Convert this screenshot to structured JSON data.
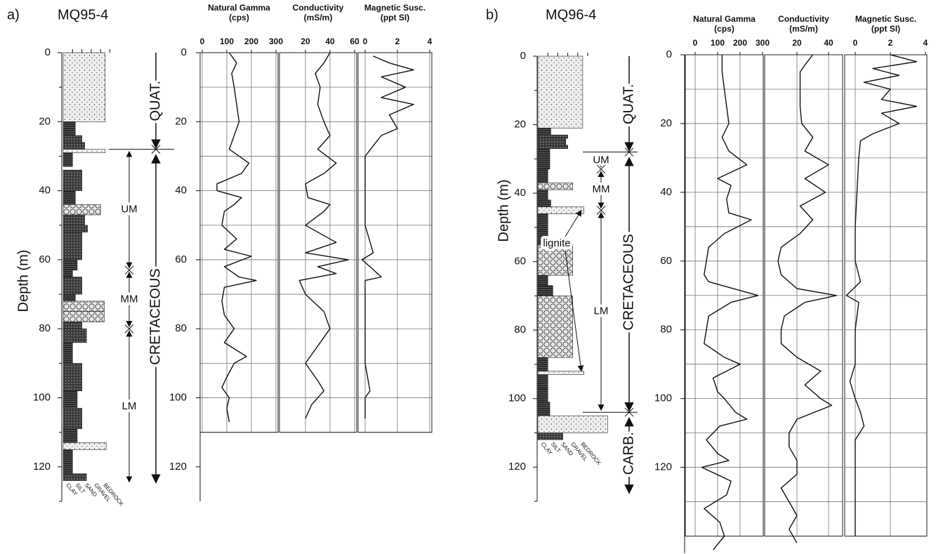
{
  "chart_data": [
    {
      "type": "well-log",
      "title": "a)",
      "subtitle": "MQ95-4",
      "ylabel": "Depth (m)",
      "lithology": {
        "ylim": [
          0,
          130
        ],
        "yticks": [
          0,
          20,
          40,
          60,
          80,
          100,
          120
        ],
        "yminor": [
          10,
          30,
          50,
          70,
          90,
          110,
          130
        ],
        "grain": [
          "CLAY",
          "SILT",
          "SAND",
          "GRAVEL",
          "BEDROCK"
        ],
        "units": [
          {
            "top": 0,
            "bottom": 20,
            "size": 4.5
          },
          {
            "top": 20,
            "bottom": 24,
            "size": 1.3
          },
          {
            "top": 24,
            "bottom": 26,
            "size": 2
          },
          {
            "top": 26,
            "bottom": 28,
            "size": 2.3
          },
          {
            "top": 28,
            "bottom": 29,
            "size": 4.5
          },
          {
            "top": 29,
            "bottom": 33,
            "size": 1
          },
          {
            "top": 34,
            "bottom": 40,
            "size": 2
          },
          {
            "top": 40,
            "bottom": 44,
            "size": 1.3
          },
          {
            "top": 44,
            "bottom": 47,
            "size": 4
          },
          {
            "top": 47,
            "bottom": 50,
            "size": 2.3
          },
          {
            "top": 50,
            "bottom": 52,
            "size": 2.6
          },
          {
            "top": 52,
            "bottom": 60,
            "size": 2
          },
          {
            "top": 60,
            "bottom": 63,
            "size": 1.5
          },
          {
            "top": 63,
            "bottom": 65,
            "size": 1
          },
          {
            "top": 65,
            "bottom": 70,
            "size": 2
          },
          {
            "top": 70,
            "bottom": 72,
            "size": 1.3
          },
          {
            "top": 72,
            "bottom": 75,
            "size": 4.4
          },
          {
            "top": 75,
            "bottom": 78,
            "size": 4.4
          },
          {
            "top": 78,
            "bottom": 80,
            "size": 2
          },
          {
            "top": 80,
            "bottom": 84,
            "size": 2.5
          },
          {
            "top": 84,
            "bottom": 90,
            "size": 1
          },
          {
            "top": 90,
            "bottom": 98,
            "size": 2
          },
          {
            "top": 98,
            "bottom": 103,
            "size": 1.5
          },
          {
            "top": 103,
            "bottom": 109,
            "size": 2
          },
          {
            "top": 109,
            "bottom": 113,
            "size": 1.5
          },
          {
            "top": 113,
            "bottom": 115,
            "size": 4.6
          },
          {
            "top": 115,
            "bottom": 122,
            "size": 1
          },
          {
            "top": 122,
            "bottom": 124,
            "size": 2.5
          }
        ]
      },
      "formations": [
        {
          "label": "QUAT.",
          "top": 0,
          "bottom": 28
        },
        {
          "label": "CRETACEOUS",
          "top": 28,
          "bottom": 125
        }
      ],
      "members": [
        {
          "label": "UM",
          "top": 28,
          "bottom": 63
        },
        {
          "label": "MM",
          "top": 63,
          "bottom": 80
        },
        {
          "label": "LM",
          "top": 80,
          "bottom": 125
        }
      ],
      "annotations": [],
      "ylim": [
        0,
        130
      ],
      "yticks": [
        0,
        20,
        40,
        60,
        80,
        100,
        120
      ],
      "grid": [
        0,
        10,
        20,
        30,
        40,
        50,
        60,
        70,
        80,
        90,
        100,
        110
      ],
      "tracks": [
        {
          "type": "line",
          "title": "Natural Gamma",
          "subtitle": "(cps)",
          "xlim": [
            0,
            300
          ],
          "xticks": [
            0,
            100,
            200,
            300
          ],
          "depth": [
            0,
            3,
            6,
            10,
            15,
            20,
            24,
            28,
            32,
            35,
            38,
            40,
            42,
            44,
            46,
            50,
            54,
            57,
            59,
            62,
            65,
            66,
            68,
            72,
            76,
            80,
            84,
            88,
            90,
            94,
            97,
            100,
            103,
            107
          ],
          "values": [
            110,
            140,
            120,
            130,
            140,
            150,
            130,
            110,
            190,
            160,
            60,
            60,
            160,
            130,
            90,
            80,
            140,
            90,
            200,
            90,
            150,
            220,
            90,
            80,
            90,
            130,
            90,
            180,
            130,
            100,
            80,
            110,
            100,
            110
          ]
        },
        {
          "type": "line",
          "title": "Conductivity",
          "subtitle": "(mS/m)",
          "xlim": [
            0,
            60
          ],
          "xticks": [
            20,
            40,
            60
          ],
          "depth": [
            0,
            3,
            6,
            10,
            15,
            20,
            24,
            28,
            32,
            35,
            38,
            42,
            44,
            46,
            50,
            55,
            58,
            60,
            62,
            64,
            66,
            70,
            75,
            80,
            85,
            90,
            95,
            98,
            102,
            106
          ],
          "values": [
            40,
            35,
            28,
            32,
            30,
            35,
            40,
            30,
            45,
            35,
            20,
            22,
            40,
            35,
            20,
            45,
            20,
            55,
            30,
            45,
            15,
            20,
            35,
            40,
            30,
            20,
            30,
            35,
            25,
            20
          ]
        },
        {
          "type": "line",
          "title": "Magnetic Susc.",
          "subtitle": "(ppt SI)",
          "xlim": [
            0,
            4
          ],
          "xticks": [
            0,
            2,
            4
          ],
          "depth": [
            1,
            3,
            5,
            7,
            10,
            13,
            15,
            18,
            22,
            24,
            27,
            30,
            40,
            50,
            58,
            60,
            62,
            65,
            66,
            70,
            80,
            90,
            98,
            100,
            106
          ],
          "values": [
            0.5,
            1.5,
            3,
            1,
            2.5,
            1,
            3,
            1.5,
            2,
            1,
            0.5,
            0,
            0,
            0,
            0.5,
            -0.2,
            0.3,
            1,
            0,
            0,
            0,
            0,
            0.3,
            0,
            0
          ]
        }
      ]
    },
    {
      "type": "well-log",
      "title": "b)",
      "subtitle": "MQ96-4",
      "ylabel": "Depth (m)",
      "lithology": {
        "ylim": [
          0,
          130
        ],
        "yticks": [
          0,
          20,
          40,
          60,
          80,
          100,
          120
        ],
        "yminor": [
          10,
          30,
          50,
          70,
          90,
          110,
          130
        ],
        "grain": [
          "CLAY",
          "SILT",
          "SAND",
          "GRAVEL",
          "BEDROCK"
        ],
        "units": [
          {
            "top": 0,
            "bottom": 21,
            "size": 4.5
          },
          {
            "top": 21,
            "bottom": 23,
            "size": 1.3
          },
          {
            "top": 23,
            "bottom": 24,
            "size": 3
          },
          {
            "top": 24,
            "bottom": 26,
            "size": 2.8
          },
          {
            "top": 26,
            "bottom": 27,
            "size": 3
          },
          {
            "top": 27,
            "bottom": 33,
            "size": 1.2
          },
          {
            "top": 33,
            "bottom": 37,
            "size": 1
          },
          {
            "top": 37,
            "bottom": 39,
            "size": 3.5
          },
          {
            "top": 39,
            "bottom": 42,
            "size": 1
          },
          {
            "top": 42,
            "bottom": 44,
            "size": 1.3
          },
          {
            "top": 44,
            "bottom": 46,
            "size": 4.6
          },
          {
            "top": 46,
            "bottom": 55,
            "size": 1
          },
          {
            "top": 55,
            "bottom": 64,
            "size": 3.5
          },
          {
            "top": 64,
            "bottom": 67,
            "size": 1
          },
          {
            "top": 67,
            "bottom": 70,
            "size": 1.5
          },
          {
            "top": 70,
            "bottom": 88,
            "size": 3.5
          },
          {
            "top": 88,
            "bottom": 92,
            "size": 1
          },
          {
            "top": 92,
            "bottom": 93,
            "size": 4.6
          },
          {
            "top": 93,
            "bottom": 97,
            "size": 1
          },
          {
            "top": 97,
            "bottom": 101,
            "size": 1
          },
          {
            "top": 101,
            "bottom": 105,
            "size": 1.2
          },
          {
            "top": 105,
            "bottom": 110,
            "size": 7
          },
          {
            "top": 110,
            "bottom": 112,
            "size": 2.5
          }
        ]
      },
      "formations": [
        {
          "label": "QUAT.",
          "top": 0,
          "bottom": 28
        },
        {
          "label": "CRETACEOUS",
          "top": 28,
          "bottom": 104
        },
        {
          "label": "CARB.",
          "top": 104,
          "bottom": 128
        }
      ],
      "members": [
        {
          "label": "UM",
          "top": 28,
          "bottom": 33
        },
        {
          "label": "MM",
          "top": 33,
          "bottom": 45
        },
        {
          "label": "LM",
          "top": 45,
          "bottom": 104
        }
      ],
      "annotations": [
        {
          "label": "lignite",
          "depths": [
            45,
            92
          ]
        }
      ],
      "ylim": [
        0,
        145
      ],
      "yticks": [
        0,
        20,
        40,
        60,
        80,
        100,
        120
      ],
      "grid": [
        0,
        10,
        20,
        30,
        40,
        50,
        60,
        70,
        80,
        90,
        100,
        110,
        120,
        130,
        140
      ],
      "tracks": [
        {
          "type": "line",
          "title": "Natural Gamma",
          "subtitle": "(cps)",
          "xlim": [
            0,
            300
          ],
          "xticks": [
            0,
            100,
            200,
            300
          ],
          "depth": [
            0,
            5,
            10,
            15,
            20,
            24,
            28,
            32,
            36,
            38,
            42,
            46,
            48,
            52,
            56,
            60,
            64,
            66,
            70,
            72,
            76,
            80,
            84,
            88,
            90,
            94,
            98,
            100,
            104,
            106,
            108,
            112,
            116,
            118,
            120,
            124,
            128,
            132,
            136,
            140,
            144
          ],
          "values": [
            120,
            120,
            130,
            140,
            150,
            120,
            150,
            230,
            100,
            160,
            140,
            150,
            250,
            130,
            60,
            50,
            40,
            60,
            280,
            160,
            60,
            50,
            40,
            130,
            200,
            80,
            100,
            130,
            180,
            230,
            110,
            50,
            100,
            150,
            30,
            160,
            140,
            40,
            110,
            130,
            80
          ]
        },
        {
          "type": "line",
          "title": "Conductivity",
          "subtitle": "(mS/m)",
          "xlim": [
            0,
            40
          ],
          "xticks": [
            20,
            40
          ],
          "depth": [
            0,
            3,
            5,
            10,
            15,
            20,
            24,
            28,
            32,
            36,
            40,
            44,
            48,
            52,
            56,
            60,
            64,
            68,
            70,
            72,
            76,
            80,
            84,
            88,
            92,
            96,
            100,
            102,
            106,
            110,
            114,
            118,
            122,
            126,
            130,
            134,
            138,
            142
          ],
          "values": [
            30,
            25,
            22,
            22,
            22,
            23,
            30,
            25,
            40,
            25,
            38,
            22,
            30,
            22,
            10,
            8,
            10,
            20,
            45,
            25,
            12,
            10,
            10,
            20,
            35,
            25,
            35,
            42,
            20,
            15,
            15,
            20,
            20,
            10,
            15,
            20,
            15,
            20
          ]
        },
        {
          "type": "line",
          "title": "Magnetic Susc.",
          "subtitle": "(ppt SI)",
          "xlim": [
            0,
            4
          ],
          "xticks": [
            0,
            2,
            4
          ],
          "depth": [
            0,
            2,
            4,
            6,
            8,
            10,
            13,
            15,
            17,
            20,
            23,
            25,
            30,
            40,
            50,
            60,
            66,
            70,
            72,
            80,
            90,
            95,
            100,
            104,
            108,
            112,
            120,
            130,
            140
          ],
          "values": [
            2,
            3.5,
            1,
            2.5,
            0.5,
            2,
            1.5,
            3.5,
            1.5,
            2.5,
            1,
            0.3,
            0.2,
            0.1,
            0,
            0,
            0.3,
            -0.5,
            0.2,
            0,
            0,
            -0.3,
            0,
            0.3,
            0.5,
            0,
            0,
            0,
            0
          ]
        }
      ]
    }
  ]
}
